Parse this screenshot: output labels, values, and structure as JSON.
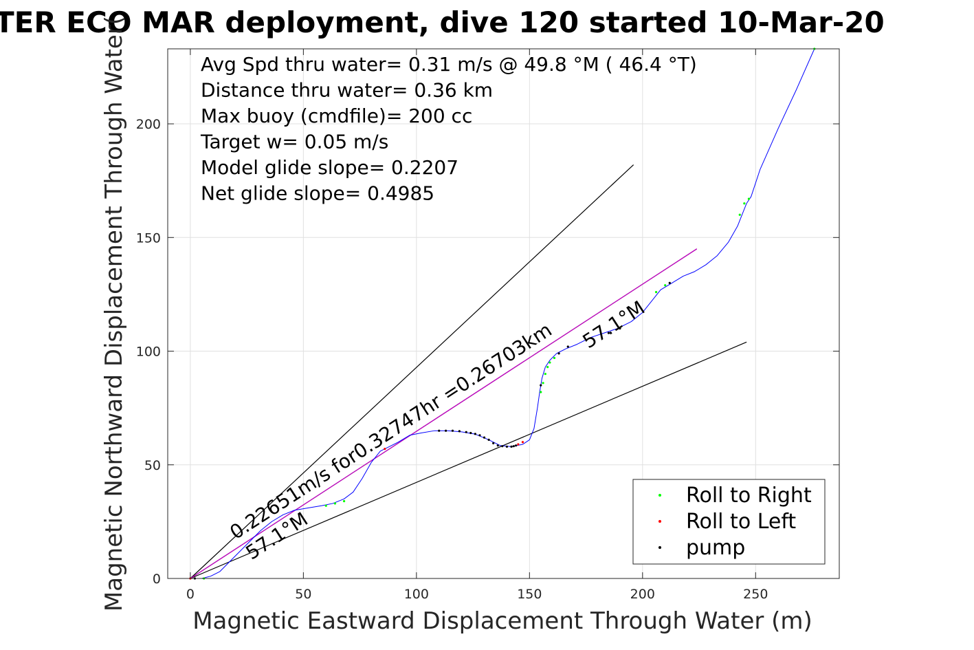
{
  "chart_data": {
    "type": "line",
    "title": "TER ECO MAR deployment, dive 120 started 10-Mar-20",
    "xlabel": "Magnetic Eastward Displacement Through Water (m)",
    "ylabel": "Magnetic Northward Displacement Through Water(",
    "xlim": [
      -10,
      287
    ],
    "ylim": [
      0,
      233
    ],
    "xticks": [
      0,
      50,
      100,
      150,
      200,
      250
    ],
    "yticks": [
      0,
      50,
      100,
      150,
      200
    ],
    "xtick_labels": [
      "0",
      "50",
      "100",
      "150",
      "200",
      "250"
    ],
    "ytick_labels": [
      "0",
      "50",
      "100",
      "150",
      "200"
    ],
    "grid": true,
    "info_lines": [
      "Avg Spd thru water=  0.31 m/s @  49.8 °M ( 46.4 °T)",
      "Distance thru water=  0.36 km",
      "Max buoy (cmdfile)= 200 cc",
      "Target w= 0.05 m/s",
      "Model glide slope= 0.2207",
      "Net glide slope= 0.4985"
    ],
    "annotations": [
      {
        "text": "0.22651m/s for0.32747hr =0.26703km",
        "x": 20,
        "y": 17,
        "angle_deg": 33
      },
      {
        "text": "57.1°M",
        "x": 27,
        "y": 8,
        "angle_deg": 33
      },
      {
        "text": "57.1°M",
        "x": 176,
        "y": 101,
        "angle_deg": 33
      }
    ],
    "reference_lines": [
      {
        "color": "#000000",
        "points": [
          [
            0,
            0
          ],
          [
            196,
            182
          ]
        ]
      },
      {
        "color": "#000000",
        "points": [
          [
            0,
            0
          ],
          [
            246,
            104
          ]
        ]
      },
      {
        "color": "#000000",
        "points": [
          [
            0,
            0
          ],
          [
            224,
            145
          ]
        ]
      },
      {
        "color": "#cc00cc",
        "points": [
          [
            0,
            0
          ],
          [
            224,
            145
          ]
        ]
      }
    ],
    "series": [
      {
        "color": "#0000ff",
        "points": [
          [
            0,
            0
          ],
          [
            5,
            0
          ],
          [
            9,
            1
          ],
          [
            13,
            3
          ],
          [
            17,
            7
          ],
          [
            21,
            11
          ],
          [
            26,
            16
          ],
          [
            31,
            21
          ],
          [
            36,
            25
          ],
          [
            41,
            28
          ],
          [
            46,
            30
          ],
          [
            52,
            31
          ],
          [
            58,
            32
          ],
          [
            63,
            33
          ],
          [
            68,
            35
          ],
          [
            72,
            38
          ],
          [
            76,
            44
          ],
          [
            80,
            51
          ],
          [
            84,
            56
          ],
          [
            88,
            58
          ],
          [
            92,
            60
          ],
          [
            97,
            63
          ],
          [
            102,
            64
          ],
          [
            108,
            65
          ],
          [
            114,
            65
          ],
          [
            120,
            64.5
          ],
          [
            126,
            63.5
          ],
          [
            132,
            61
          ],
          [
            137,
            58.5
          ],
          [
            142,
            58
          ],
          [
            147,
            59
          ],
          [
            150,
            61
          ],
          [
            152,
            66
          ],
          [
            153.5,
            75
          ],
          [
            154.5,
            82
          ],
          [
            155.5,
            88
          ],
          [
            157,
            93
          ],
          [
            159,
            96
          ],
          [
            162,
            99
          ],
          [
            166,
            101
          ],
          [
            171,
            103
          ],
          [
            177,
            106
          ],
          [
            183,
            108
          ],
          [
            189,
            110
          ],
          [
            195,
            113
          ],
          [
            200,
            117
          ],
          [
            204,
            122
          ],
          [
            208,
            127
          ],
          [
            213,
            130
          ],
          [
            218,
            133
          ],
          [
            223,
            135
          ],
          [
            228,
            138
          ],
          [
            233,
            142
          ],
          [
            238,
            148
          ],
          [
            242,
            155
          ],
          [
            244,
            160
          ],
          [
            246,
            165
          ],
          [
            248,
            168
          ],
          [
            252,
            180
          ],
          [
            260,
            198
          ],
          [
            268,
            215
          ],
          [
            276,
            233
          ]
        ]
      }
    ],
    "markers": {
      "roll_right": {
        "color": "#00ff00",
        "points": [
          [
            6,
            0
          ],
          [
            60,
            32
          ],
          [
            64,
            33
          ],
          [
            68,
            34
          ],
          [
            155,
            82
          ],
          [
            156,
            86
          ],
          [
            157,
            90
          ],
          [
            158,
            93
          ],
          [
            159,
            95
          ],
          [
            161,
            97
          ],
          [
            206,
            126
          ],
          [
            210,
            129
          ],
          [
            243,
            160
          ],
          [
            245,
            165
          ],
          [
            247,
            167
          ],
          [
            276,
            233
          ]
        ]
      },
      "roll_left": {
        "color": "#ff0000",
        "points": [
          [
            0,
            0
          ],
          [
            145,
            59
          ],
          [
            147,
            60
          ],
          [
            86,
            57
          ]
        ]
      },
      "pump": {
        "color": "#000000",
        "points": [
          [
            2,
            0
          ],
          [
            110,
            65
          ],
          [
            113,
            65
          ],
          [
            116,
            65
          ],
          [
            119,
            64.8
          ],
          [
            122,
            64.4
          ],
          [
            124,
            64
          ],
          [
            126,
            63.6
          ],
          [
            128,
            63
          ],
          [
            130,
            62
          ],
          [
            132,
            61
          ],
          [
            134,
            59.5
          ],
          [
            136,
            58.5
          ],
          [
            138,
            58.2
          ],
          [
            140,
            58
          ],
          [
            142,
            58
          ],
          [
            143,
            58.2
          ],
          [
            144,
            58.5
          ],
          [
            155,
            85
          ],
          [
            163,
            99
          ],
          [
            167,
            102
          ],
          [
            185,
            108
          ],
          [
            190,
            110
          ],
          [
            212,
            130
          ]
        ]
      }
    },
    "legend": {
      "placement": "bottom-right",
      "entries": [
        {
          "key": "roll_right",
          "label": "Roll to Right",
          "color": "#00ff00"
        },
        {
          "key": "roll_left",
          "label": "Roll to Left",
          "color": "#ff0000"
        },
        {
          "key": "pump",
          "label": "pump",
          "color": "#000000"
        }
      ]
    }
  }
}
